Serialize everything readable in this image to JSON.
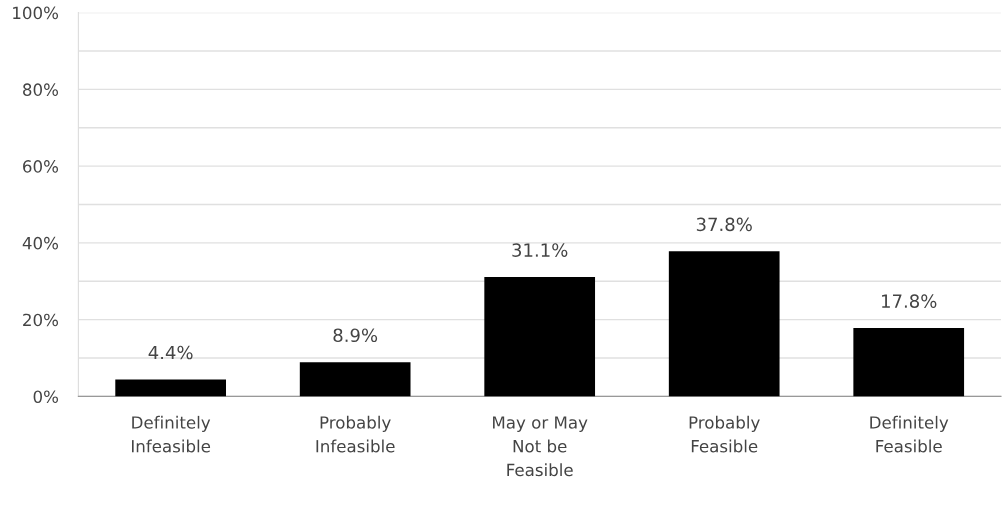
{
  "chart_data": {
    "type": "bar",
    "categories": [
      "Definitely\nInfeasible",
      "Probably\nInfeasible",
      "May or May\nNot be\nFeasible",
      "Probably\nFeasible",
      "Definitely\nFeasible"
    ],
    "values": [
      4.4,
      8.9,
      31.1,
      37.8,
      17.8
    ],
    "value_labels": [
      "4.4%",
      "8.9%",
      "31.1%",
      "37.8%",
      "17.8%"
    ],
    "color": "#000000",
    "ylim": [
      0,
      100
    ],
    "yticks": [
      {
        "value": 0,
        "label": "0%"
      },
      {
        "value": 10,
        "label": null
      },
      {
        "value": 20,
        "label": "20%"
      },
      {
        "value": 30,
        "label": null
      },
      {
        "value": 40,
        "label": "40%"
      },
      {
        "value": 50,
        "label": null
      },
      {
        "value": 60,
        "label": "60%"
      },
      {
        "value": 70,
        "label": null
      },
      {
        "value": 80,
        "label": "80%"
      },
      {
        "value": 90,
        "label": null
      },
      {
        "value": 100,
        "label": "100%"
      }
    ],
    "grid": "y"
  }
}
